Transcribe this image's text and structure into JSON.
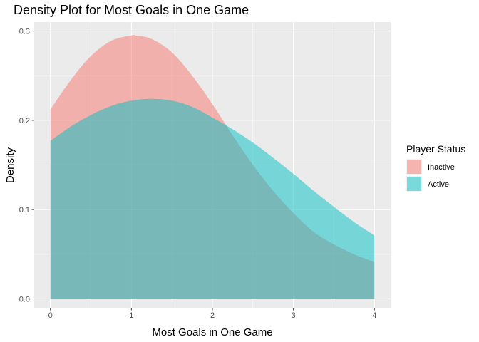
{
  "chart_data": {
    "type": "area",
    "title": "Density Plot for Most Goals in One Game",
    "xlabel": "Most Goals in One Game",
    "ylabel": "Density",
    "xlim": [
      -0.2,
      4.2
    ],
    "ylim": [
      -0.01,
      0.31
    ],
    "x_ticks": [
      0,
      1,
      2,
      3,
      4
    ],
    "x_tick_labels": [
      "0",
      "1",
      "2",
      "3",
      "4"
    ],
    "y_ticks": [
      0.0,
      0.1,
      0.2,
      0.3
    ],
    "y_tick_labels": [
      "0.0",
      "0.1",
      "0.2",
      "0.3"
    ],
    "grid": true,
    "legend": {
      "title": "Player Status",
      "position": "right"
    },
    "series": [
      {
        "name": "Inactive",
        "color": "#F8766D",
        "x": [
          0,
          0.25,
          0.5,
          0.75,
          1.0,
          1.05,
          1.25,
          1.5,
          1.75,
          2.0,
          2.25,
          2.5,
          2.75,
          3.0,
          3.25,
          3.5,
          3.75,
          4.0
        ],
        "y": [
          0.212,
          0.245,
          0.272,
          0.289,
          0.295,
          0.295,
          0.291,
          0.276,
          0.25,
          0.218,
          0.183,
          0.15,
          0.121,
          0.096,
          0.075,
          0.061,
          0.05,
          0.041
        ]
      },
      {
        "name": "Active",
        "color": "#00BFC4",
        "x": [
          0,
          0.25,
          0.5,
          0.75,
          1.0,
          1.25,
          1.5,
          1.75,
          2.0,
          2.25,
          2.5,
          2.75,
          3.0,
          3.25,
          3.5,
          3.75,
          4.0
        ],
        "y": [
          0.177,
          0.193,
          0.206,
          0.216,
          0.222,
          0.224,
          0.222,
          0.215,
          0.203,
          0.19,
          0.175,
          0.158,
          0.14,
          0.121,
          0.103,
          0.086,
          0.071
        ]
      }
    ]
  }
}
